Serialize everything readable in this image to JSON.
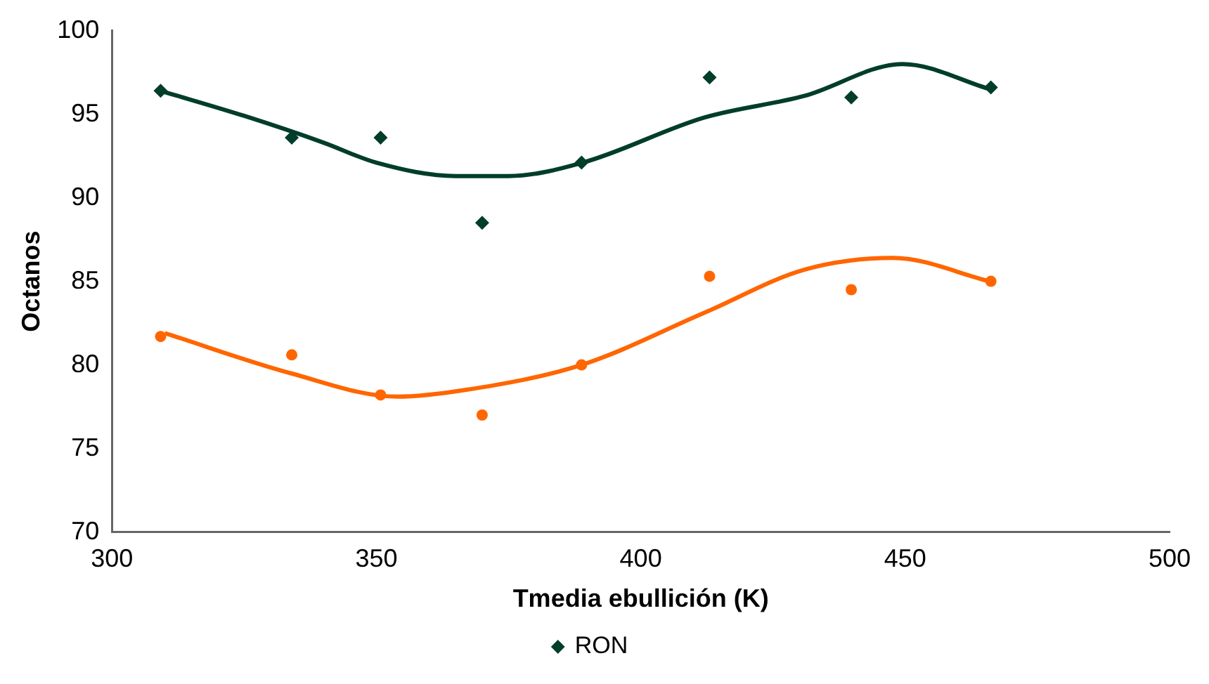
{
  "chart_data": {
    "type": "scatter",
    "xlabel": "Tmedia ebullición (K)",
    "ylabel": "Octanos",
    "xlim": [
      300,
      500
    ],
    "xticks": [
      300,
      350,
      400,
      450,
      500
    ],
    "ylim": [
      70,
      100
    ],
    "yticks": [
      70,
      75,
      80,
      85,
      90,
      95,
      100
    ],
    "grid": false,
    "legend": "bottom",
    "series": [
      {
        "name": "RON",
        "marker": "diamond",
        "color": "#003d2b",
        "x": [
          309.2,
          334,
          350.8,
          370,
          388.8,
          413,
          439.8,
          466.2
        ],
        "values": [
          96.4,
          93.6,
          93.6,
          88.5,
          92.1,
          97.2,
          96.0,
          96.6
        ]
      },
      {
        "marker": "circle",
        "color": "#ff6600",
        "x": [
          309.2,
          334,
          350.8,
          370,
          388.8,
          413,
          439.8,
          466.2
        ],
        "values": [
          81.7,
          80.6,
          78.2,
          77.0,
          80.0,
          85.3,
          84.5,
          85.0
        ]
      },
      {
        "type": "line",
        "marker": "none",
        "color": "#003d2b",
        "x": [
          309.2,
          325,
          340,
          350,
          365,
          375,
          389,
          412,
          431,
          449.5,
          466
        ],
        "values": [
          96.4,
          94.9,
          93.3,
          92.1,
          91.3,
          91.3,
          92.1,
          94.8,
          96.1,
          98.0,
          96.5
        ]
      },
      {
        "type": "line",
        "marker": "none",
        "color": "#ff6600",
        "x": [
          310,
          333.8,
          354,
          366.8,
          388.8,
          411.9,
          431,
          447.7,
          466
        ],
        "values": [
          81.9,
          79.5,
          78.1,
          78.5,
          80.0,
          83.1,
          85.7,
          86.4,
          85.0
        ]
      }
    ]
  }
}
